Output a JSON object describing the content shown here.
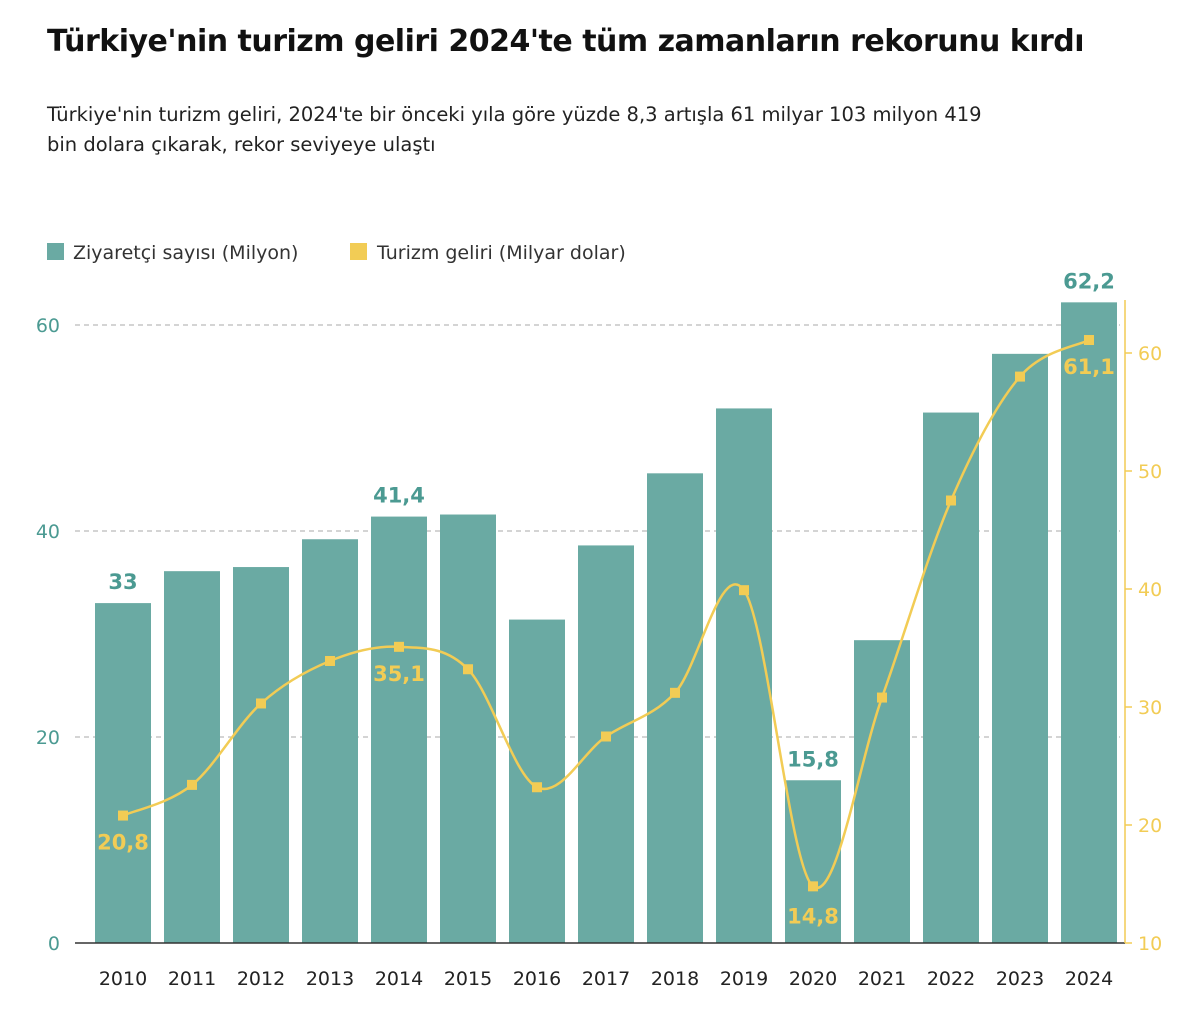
{
  "title": "Türkiye'nin turizm geliri 2024'te tüm zamanların rekorunu kırdı",
  "subtitle": "Türkiye'nin turizm geliri, 2024'te bir önceki yıla göre yüzde 8,3 artışla 61 milyar 103 milyon 419 bin dolara çıkarak, rekor seviyeye ulaştı",
  "chart_data": {
    "type": "bar+line",
    "categories": [
      "2010",
      "2011",
      "2012",
      "2013",
      "2014",
      "2015",
      "2016",
      "2017",
      "2018",
      "2019",
      "2020",
      "2021",
      "2022",
      "2023",
      "2024"
    ],
    "series": [
      {
        "name": "Ziyaretçi sayısı (Milyon)",
        "type": "bar",
        "axis": "left",
        "color": "#6aaaa3",
        "values": [
          33,
          36.1,
          36.5,
          39.2,
          41.4,
          41.6,
          31.4,
          38.6,
          45.6,
          51.9,
          15.8,
          29.4,
          51.5,
          57.2,
          62.2
        ],
        "labels": {
          "0": "33",
          "4": "41,4",
          "10": "15,8",
          "14": "62,2"
        }
      },
      {
        "name": "Turizm geliri (Milyar dolar)",
        "type": "line",
        "axis": "right",
        "color": "#f2cc55",
        "values": [
          20.8,
          23.4,
          30.3,
          33.9,
          35.1,
          33.2,
          23.2,
          27.5,
          31.2,
          39.9,
          14.8,
          30.8,
          47.5,
          58.0,
          61.1
        ],
        "labels": {
          "0": "20,8",
          "4": "35,1",
          "10": "14,8",
          "14": "61,1"
        }
      }
    ],
    "left_axis": {
      "ylim": [
        0,
        60
      ],
      "ticks": [
        "0",
        "20",
        "40",
        "60"
      ],
      "color": "#4b9a92"
    },
    "right_axis": {
      "ylim": [
        10,
        62
      ],
      "ticks": [
        "10",
        "20",
        "30",
        "40",
        "50",
        "60"
      ],
      "color": "#f2cc55"
    },
    "grid": "horizontal dashed",
    "legend": "top-left"
  }
}
